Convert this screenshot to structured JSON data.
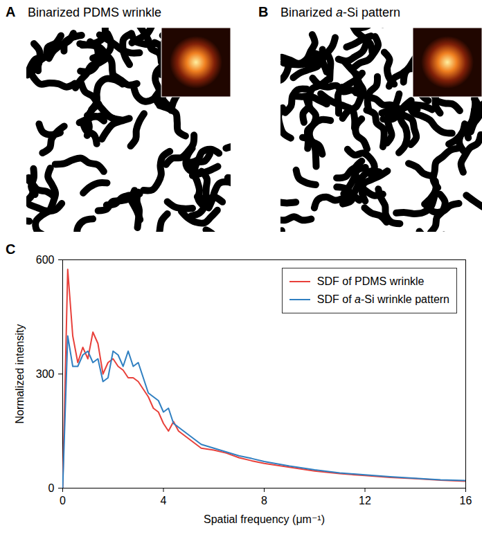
{
  "chart_data": [
    {
      "type": "image",
      "panel": "A",
      "title": "Binarized PDMS wrinkle"
    },
    {
      "type": "image",
      "panel": "B",
      "title": "Binarized a-Si pattern"
    },
    {
      "type": "line",
      "panel": "C",
      "x_label": "Spatial frequency (μm⁻¹)",
      "y_label": "Normalized intensity",
      "x": [
        0,
        0.2,
        0.4,
        0.6,
        0.8,
        1.0,
        1.2,
        1.4,
        1.6,
        1.8,
        2.0,
        2.2,
        2.4,
        2.6,
        2.8,
        3.0,
        3.2,
        3.4,
        3.6,
        3.8,
        4.0,
        4.2,
        4.4,
        4.6,
        4.8,
        5.0,
        5.5,
        6,
        6.5,
        7,
        7.5,
        8,
        9,
        10,
        11,
        12,
        13,
        14,
        15,
        16
      ],
      "series": [
        {
          "name": "SDF of PDMS wrinkle",
          "color": "#e8403a",
          "values": [
            0,
            575,
            400,
            330,
            370,
            340,
            410,
            380,
            300,
            330,
            340,
            320,
            310,
            290,
            290,
            280,
            260,
            240,
            210,
            200,
            170,
            150,
            175,
            150,
            140,
            130,
            105,
            100,
            92,
            80,
            72,
            65,
            55,
            45,
            38,
            33,
            28,
            25,
            21,
            18
          ]
        },
        {
          "name": "SDF of a-Si wrinkle pattern",
          "color": "#2f7fc1",
          "values": [
            0,
            400,
            320,
            320,
            350,
            360,
            330,
            340,
            280,
            290,
            360,
            350,
            320,
            360,
            320,
            330,
            290,
            250,
            240,
            230,
            200,
            210,
            170,
            160,
            150,
            140,
            115,
            105,
            95,
            85,
            78,
            70,
            58,
            48,
            40,
            35,
            30,
            26,
            22,
            20
          ]
        }
      ],
      "xlim": [
        0,
        16
      ],
      "xticks": [
        0,
        4,
        8,
        12,
        16
      ],
      "ylim": [
        0,
        600
      ],
      "yticks": [
        0,
        300,
        600
      ],
      "legend": "top-right"
    }
  ]
}
